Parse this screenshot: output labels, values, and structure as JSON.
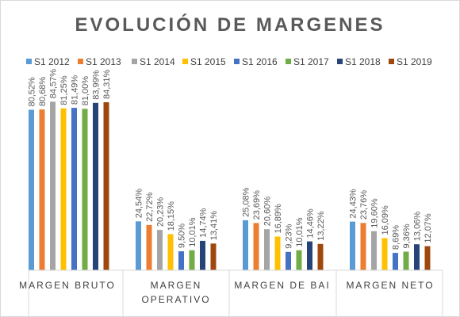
{
  "chart_data": {
    "type": "bar",
    "title": "EVOLUCIÓN DE MARGENES",
    "categories": [
      "MARGEN BRUTO",
      "MARGEN OPERATIVO",
      "MARGEN DE BAI",
      "MARGEN NETO"
    ],
    "category_lines": [
      [
        "MARGEN BRUTO"
      ],
      [
        "MARGEN",
        "OPERATIVO"
      ],
      [
        "MARGEN DE BAI"
      ],
      [
        "MARGEN NETO"
      ]
    ],
    "series": [
      {
        "name": "S1 2012",
        "color": "#5b9bd5",
        "values": [
          80.52,
          24.54,
          25.08,
          24.43
        ],
        "labels": [
          "80,52%",
          "24,54%",
          "25,08%",
          "24,43%"
        ]
      },
      {
        "name": "S1 2013",
        "color": "#ed7d31",
        "values": [
          80.68,
          22.72,
          23.69,
          23.76
        ],
        "labels": [
          "80,68%",
          "22,72%",
          "23,69%",
          "23,76%"
        ]
      },
      {
        "name": "S1 2014",
        "color": "#a5a5a5",
        "values": [
          84.57,
          20.23,
          20.6,
          19.6
        ],
        "labels": [
          "84,57%",
          "20,23%",
          "20,60%",
          "19,60%"
        ]
      },
      {
        "name": "S1 2015",
        "color": "#ffc000",
        "values": [
          81.25,
          18.15,
          16.89,
          16.09
        ],
        "labels": [
          "81,25%",
          "18,15%",
          "16,89%",
          "16,09%"
        ]
      },
      {
        "name": "S1 2016",
        "color": "#4472c4",
        "values": [
          81.49,
          9.5,
          9.23,
          8.69
        ],
        "labels": [
          "81,49%",
          "9,50%",
          "9,23%",
          "8,69%"
        ]
      },
      {
        "name": "S1 2017",
        "color": "#70ad47",
        "values": [
          81.0,
          10.01,
          10.01,
          9.36
        ],
        "labels": [
          "81,00%",
          "10,01%",
          "10,01%",
          "9,36%"
        ]
      },
      {
        "name": "S1 2018",
        "color": "#264478",
        "values": [
          83.99,
          14.74,
          14.46,
          13.06
        ],
        "labels": [
          "83,99%",
          "14,74%",
          "14,46%",
          "13,06%"
        ]
      },
      {
        "name": "S1 2019",
        "color": "#9e480e",
        "values": [
          84.31,
          13.41,
          13.22,
          12.07
        ],
        "labels": [
          "84,31%",
          "13,41%",
          "13,22%",
          "12,07%"
        ]
      }
    ],
    "ylim": [
      0,
      84.31
    ],
    "grid": false,
    "legend_position": "top"
  }
}
